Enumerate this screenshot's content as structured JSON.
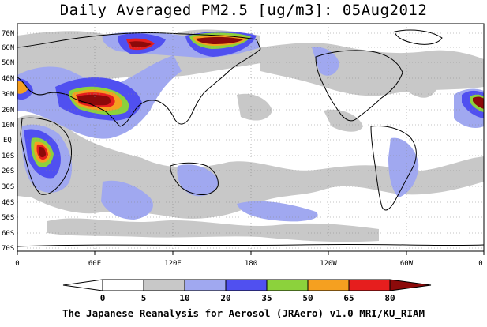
{
  "title": "Daily Averaged PM2.5 [ug/m3]: 05Aug2012",
  "footer": "The Japanese Reanalysis for Aerosol (JRAero) v1.0 MRI/KU_RIAM",
  "axes": {
    "lat_labels": [
      "70N",
      "60N",
      "50N",
      "40N",
      "30N",
      "20N",
      "10N",
      "EQ",
      "10S",
      "20S",
      "30S",
      "40S",
      "50S",
      "60S",
      "70S"
    ],
    "lon_labels": [
      "0",
      "60E",
      "120E",
      "180",
      "120W",
      "60W",
      "0"
    ]
  },
  "colorbar": {
    "levels": [
      "0",
      "5",
      "10",
      "20",
      "35",
      "50",
      "65",
      "80"
    ],
    "colors": [
      "#ffffff",
      "#c8c8c8",
      "#a0a8f0",
      "#5050f0",
      "#8cd23c",
      "#f5a020",
      "#e61e1e",
      "#8c0a0a"
    ]
  },
  "palette": {
    "gray": "#c8c8c8",
    "light_blue": "#a0a8f0",
    "blue": "#5050f0",
    "green": "#8cd23c",
    "orange": "#f5a020",
    "red": "#e61e1e",
    "dark_red": "#8c0a0a"
  }
}
